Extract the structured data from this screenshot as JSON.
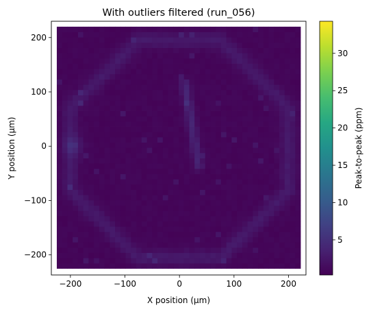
{
  "chart_data": {
    "type": "heatmap",
    "title": "With outliers filtered (run_056)",
    "xlabel": "X position (µm)",
    "ylabel": "Y position (µm)",
    "xlim": [
      -235,
      232
    ],
    "ylim": [
      -237,
      230
    ],
    "x_ticks": [
      -200,
      -100,
      0,
      100,
      200
    ],
    "x_tick_labels": [
      "−200",
      "−100",
      "0",
      "100",
      "200"
    ],
    "y_ticks": [
      -200,
      -100,
      0,
      100,
      200
    ],
    "y_tick_labels": [
      "−200",
      "−100",
      "0",
      "100",
      "200"
    ],
    "data_extent": {
      "x": [
        -225,
        222
      ],
      "y": [
        -225,
        220
      ]
    },
    "colormap": "viridis",
    "colorbar": {
      "label": "Peak-to-peak (ppm)",
      "min": 0.3,
      "max": 34.3,
      "ticks": [
        5,
        10,
        15,
        20,
        25,
        30
      ],
      "tick_labels": [
        "5",
        "10",
        "15",
        "20",
        "25",
        "30"
      ]
    },
    "typical_value_range": [
      0.5,
      4.5
    ],
    "features": [
      {
        "kind": "octagon ring",
        "center": [
          0,
          -5
        ],
        "radius_um": 200,
        "value": 2.5
      },
      {
        "kind": "diagonal streak",
        "from": [
          10,
          115
        ],
        "to": [
          35,
          -35
        ],
        "value": 3.5
      },
      {
        "kind": "left edge spot",
        "center": [
          -195,
          0
        ],
        "value": 3.0
      }
    ]
  },
  "colors": {
    "viridis_low": "#440154",
    "viridis_high": "#fde725"
  }
}
